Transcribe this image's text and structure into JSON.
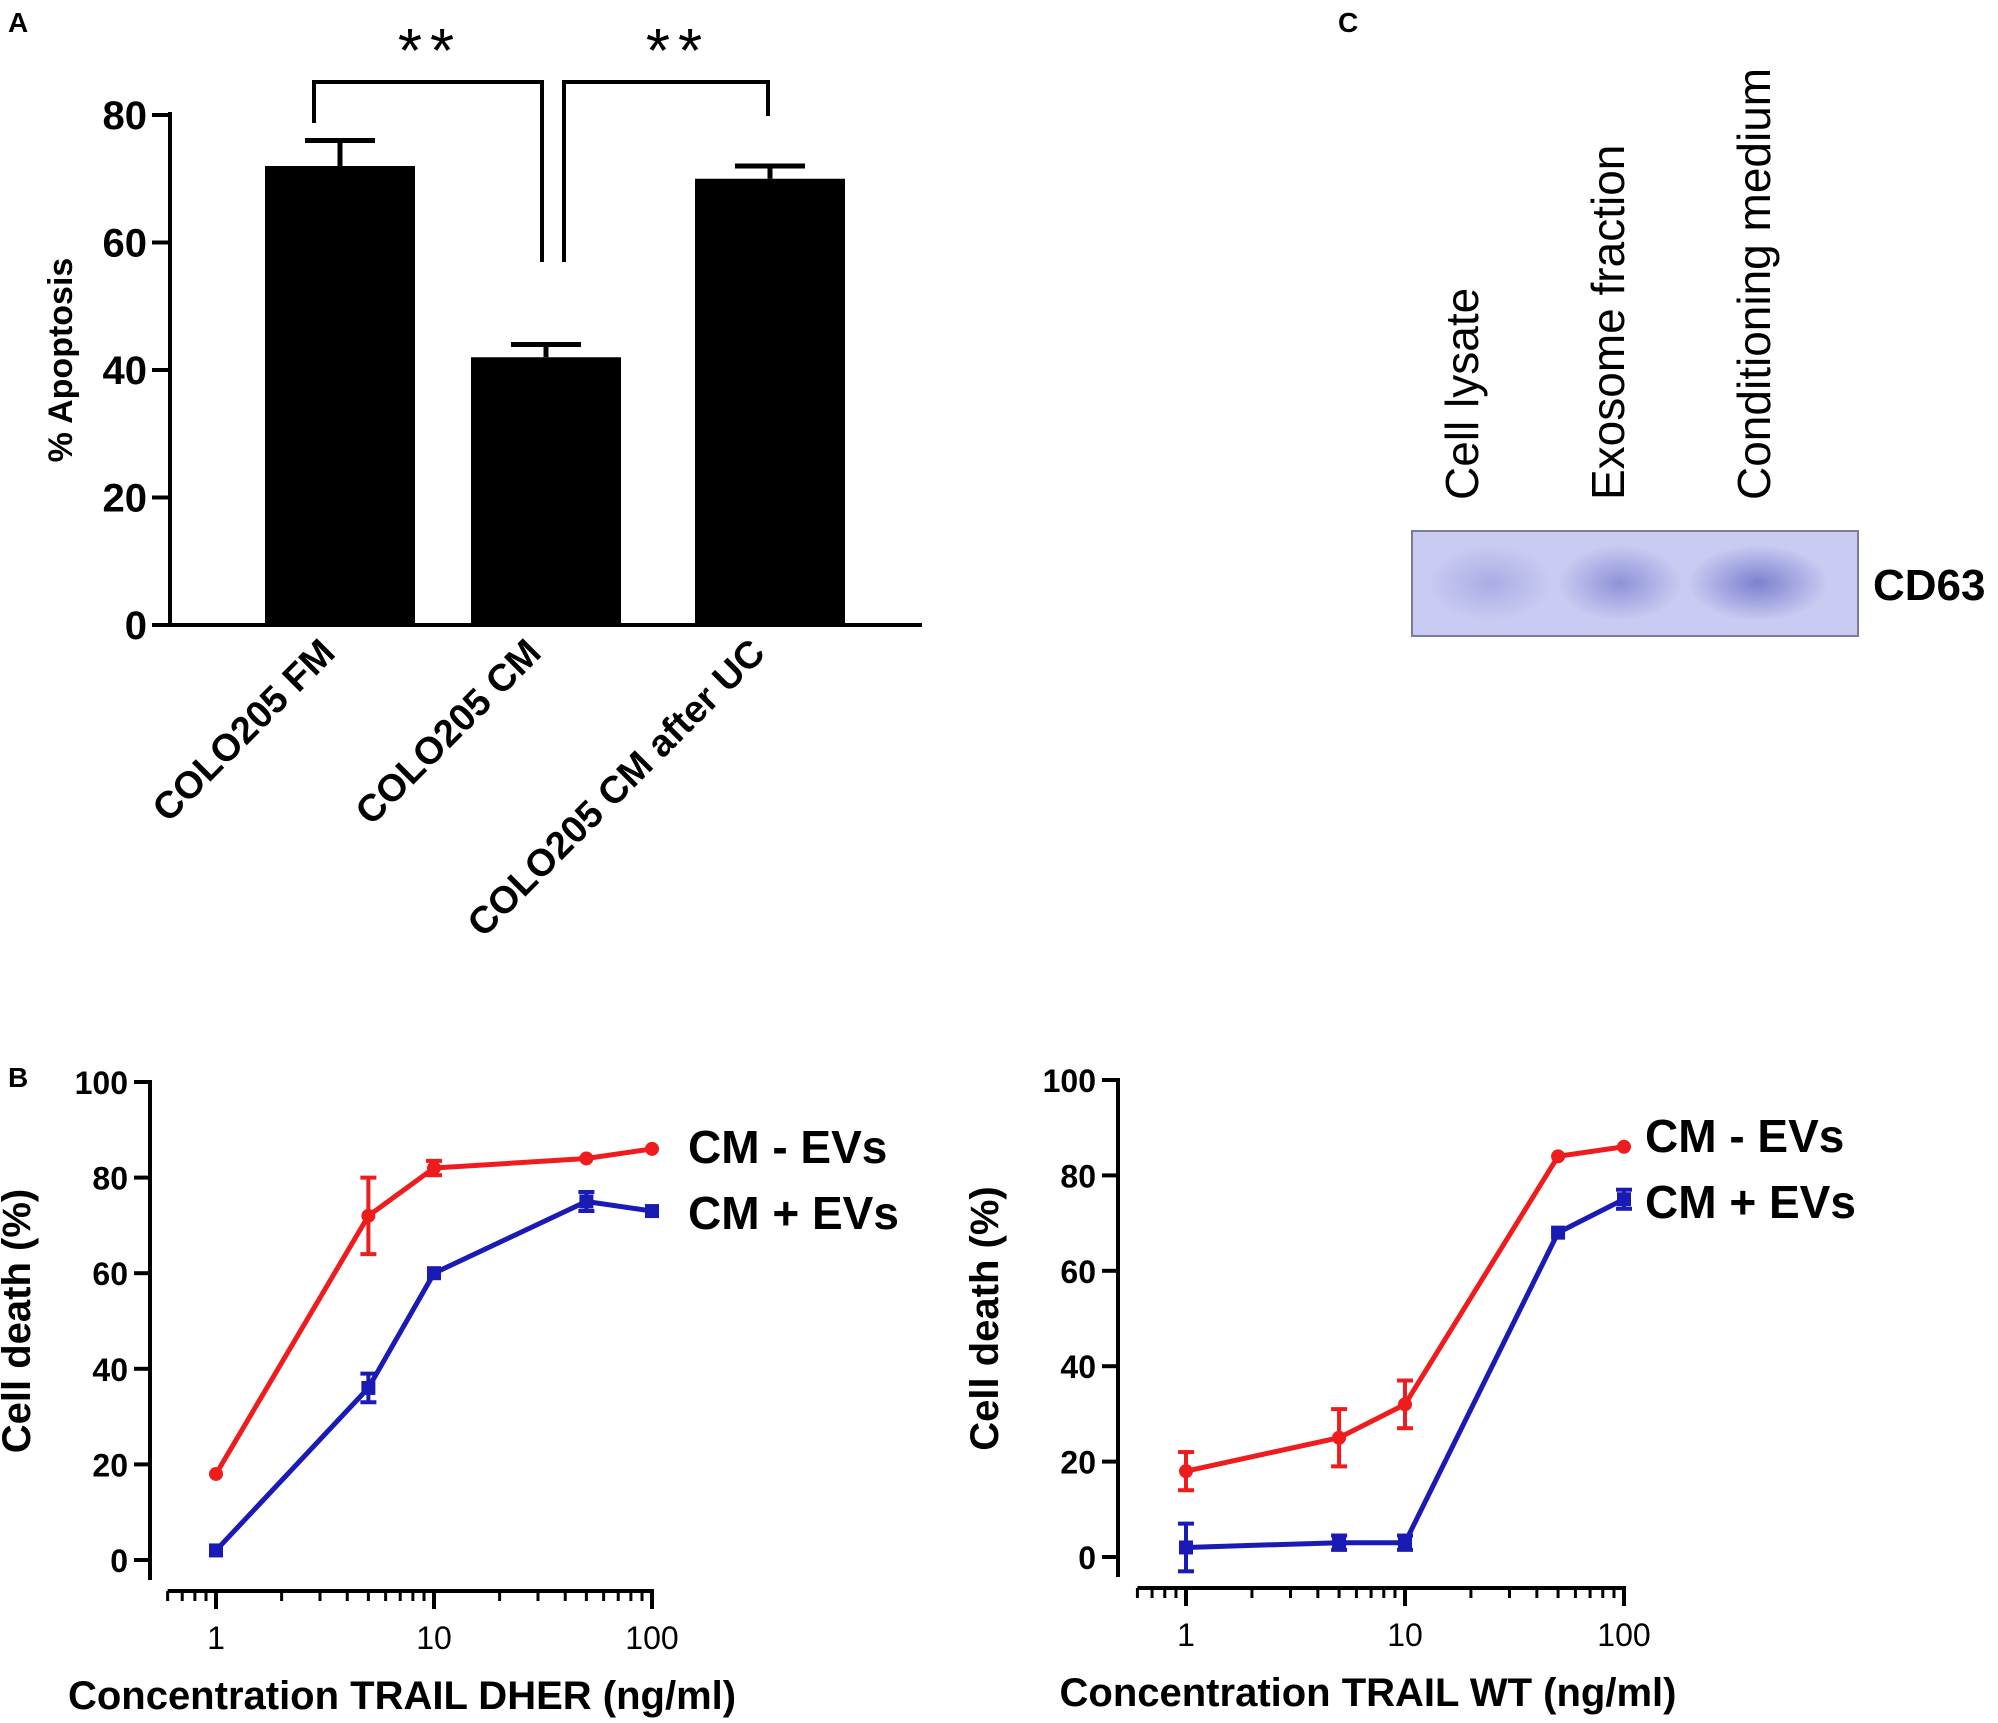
{
  "panels": {
    "a": {
      "label": "A"
    },
    "b": {
      "label": "B"
    },
    "c": {
      "label": "C"
    }
  },
  "significance": {
    "left": "**",
    "right": "**"
  },
  "blot": {
    "lanes": [
      "Cell lysate",
      "Exosome fraction",
      "Conditioning medium"
    ],
    "marker": "CD63",
    "band_intensity": [
      0.35,
      0.65,
      0.85
    ],
    "colors": {
      "membrane": "#c9cbf2",
      "band": "#6f74c9"
    }
  },
  "chart_data": [
    {
      "type": "bar",
      "panel": "A",
      "categories": [
        "COLO205 FM",
        "COLO205 CM",
        "COLO205 CM after UC"
      ],
      "values": [
        72,
        42,
        70
      ],
      "errors": [
        4,
        2,
        2
      ],
      "ylabel": "% Apoptosis",
      "xlabel": "",
      "ylim": [
        0,
        80
      ],
      "yticks": [
        0,
        20,
        40,
        60,
        80
      ],
      "bar_color": "#000000"
    },
    {
      "type": "line",
      "panel": "B-left",
      "xscale": "log",
      "x": [
        1,
        5,
        10,
        50,
        100
      ],
      "xticks": [
        1,
        10,
        100
      ],
      "xlim": [
        0.6,
        100
      ],
      "ylim": [
        0,
        100
      ],
      "yticks": [
        0,
        20,
        40,
        60,
        80,
        100
      ],
      "xlabel": "Concentration TRAIL DHER (ng/ml)",
      "ylabel": "Cell death (%)",
      "series": [
        {
          "name": "CM - EVs",
          "color": "#ee1c1c",
          "marker": "circle",
          "values": [
            18,
            72,
            82,
            84,
            86
          ],
          "errors": [
            0,
            8,
            1.5,
            0,
            0
          ]
        },
        {
          "name": "CM + EVs",
          "color": "#1a1ab4",
          "marker": "square",
          "values": [
            2,
            36,
            60,
            75,
            73
          ],
          "errors": [
            0,
            3,
            0,
            2,
            0
          ]
        }
      ]
    },
    {
      "type": "line",
      "panel": "B-right",
      "xscale": "log",
      "x": [
        1,
        5,
        10,
        50,
        100
      ],
      "xticks": [
        1,
        10,
        100
      ],
      "xlim": [
        0.6,
        100
      ],
      "ylim": [
        0,
        100
      ],
      "yticks": [
        0,
        20,
        40,
        60,
        80,
        100
      ],
      "xlabel": "Concentration TRAIL WT (ng/ml)",
      "ylabel": "Cell death (%)",
      "series": [
        {
          "name": "CM - EVs",
          "color": "#ee1c1c",
          "marker": "circle",
          "values": [
            18,
            25,
            32,
            84,
            86
          ],
          "errors": [
            4,
            6,
            5,
            0,
            0
          ]
        },
        {
          "name": "CM + EVs",
          "color": "#1a1ab4",
          "marker": "square",
          "values": [
            2,
            3,
            3,
            68,
            75
          ],
          "errors": [
            5,
            1.5,
            1.5,
            0,
            2
          ]
        }
      ]
    }
  ]
}
